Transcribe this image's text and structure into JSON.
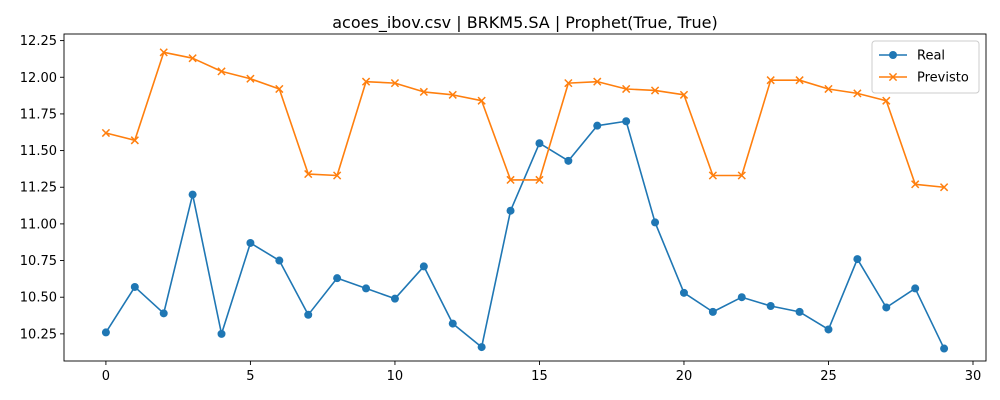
{
  "chart_data": {
    "type": "line",
    "title": "acoes_ibov.csv | BRKM5.SA | Prophet(True, True)",
    "xlabel": "",
    "ylabel": "",
    "xlim": [
      -1.45,
      30.45
    ],
    "ylim": [
      10.065,
      12.295
    ],
    "xticks": [
      0,
      5,
      10,
      15,
      20,
      25,
      30
    ],
    "yticks": [
      10.25,
      10.5,
      10.75,
      11.0,
      11.25,
      11.5,
      11.75,
      12.0,
      12.25
    ],
    "ytick_labels": [
      "10.25",
      "10.50",
      "10.75",
      "11.00",
      "11.25",
      "11.50",
      "11.75",
      "12.00",
      "12.25"
    ],
    "grid": false,
    "legend_position": "top-right",
    "x": [
      0,
      1,
      2,
      3,
      4,
      5,
      6,
      7,
      8,
      9,
      10,
      11,
      12,
      13,
      14,
      15,
      16,
      17,
      18,
      19,
      20,
      21,
      22,
      23,
      24,
      25,
      26,
      27,
      28,
      29
    ],
    "series": [
      {
        "name": "Real",
        "color": "#1f77b4",
        "marker": "circle",
        "values": [
          10.26,
          10.57,
          10.39,
          11.2,
          10.25,
          10.87,
          10.75,
          10.38,
          10.63,
          10.56,
          10.49,
          10.71,
          10.32,
          10.16,
          11.09,
          11.55,
          11.43,
          11.67,
          11.7,
          11.01,
          10.53,
          10.4,
          10.5,
          10.44,
          10.4,
          10.28,
          10.76,
          10.43,
          10.56,
          10.15
        ]
      },
      {
        "name": "Previsto",
        "color": "#ff7f0e",
        "marker": "x",
        "values": [
          11.62,
          11.57,
          12.17,
          12.13,
          12.04,
          11.99,
          11.92,
          11.34,
          11.33,
          11.97,
          11.96,
          11.9,
          11.88,
          11.84,
          11.3,
          11.3,
          11.96,
          11.97,
          11.92,
          11.91,
          11.88,
          11.33,
          11.33,
          11.98,
          11.98,
          11.92,
          11.89,
          11.84,
          11.27,
          11.25
        ]
      }
    ]
  }
}
